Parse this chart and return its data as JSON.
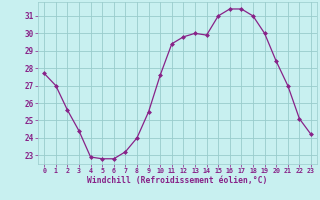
{
  "x": [
    0,
    1,
    2,
    3,
    4,
    5,
    6,
    7,
    8,
    9,
    10,
    11,
    12,
    13,
    14,
    15,
    16,
    17,
    18,
    19,
    20,
    21,
    22,
    23
  ],
  "y": [
    27.7,
    27.0,
    25.6,
    24.4,
    22.9,
    22.8,
    22.8,
    23.2,
    24.0,
    25.5,
    27.6,
    29.4,
    29.8,
    30.0,
    29.9,
    31.0,
    31.4,
    31.4,
    31.0,
    30.0,
    28.4,
    27.0,
    25.1,
    24.2
  ],
  "line_color": "#882288",
  "marker": "D",
  "marker_size": 2.5,
  "bg_color": "#c8f0f0",
  "grid_color": "#99cccc",
  "xlabel": "Windchill (Refroidissement éolien,°C)",
  "xlabel_color": "#882288",
  "tick_color": "#882288",
  "ylim": [
    22.5,
    31.8
  ],
  "yticks": [
    23,
    24,
    25,
    26,
    27,
    28,
    29,
    30,
    31
  ],
  "xlim": [
    -0.5,
    23.5
  ],
  "xticks": [
    0,
    1,
    2,
    3,
    4,
    5,
    6,
    7,
    8,
    9,
    10,
    11,
    12,
    13,
    14,
    15,
    16,
    17,
    18,
    19,
    20,
    21,
    22,
    23
  ]
}
